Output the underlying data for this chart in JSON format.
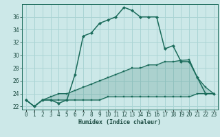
{
  "xlabel": "Humidex (Indice chaleur)",
  "background_color": "#cce8e8",
  "grid_color": "#aad4d4",
  "line_color": "#1a6b5a",
  "x_hours": [
    0,
    1,
    2,
    3,
    4,
    5,
    6,
    7,
    8,
    9,
    10,
    11,
    12,
    13,
    14,
    15,
    16,
    17,
    18,
    19,
    20,
    21,
    22,
    23
  ],
  "humidex_main": [
    23,
    22,
    23,
    23,
    22.5,
    23,
    27,
    33,
    33.5,
    35,
    35.5,
    36,
    37.5,
    37,
    36,
    36,
    36,
    31,
    31.5,
    29,
    29,
    26.5,
    24,
    24
  ],
  "humidex_low": [
    23,
    22,
    23,
    23,
    23,
    23,
    23,
    23,
    23,
    23,
    23.5,
    23.5,
    23.5,
    23.5,
    23.5,
    23.5,
    23.5,
    23.5,
    23.5,
    23.5,
    23.5,
    24,
    24,
    24
  ],
  "humidex_diag": [
    23,
    22,
    23,
    23.5,
    24,
    24,
    24.5,
    25,
    25.5,
    26,
    26.5,
    27,
    27.5,
    28,
    28,
    28.5,
    28.5,
    29,
    29,
    29.2,
    29.3,
    26.5,
    25,
    24
  ],
  "ylim": [
    21.5,
    38
  ],
  "yticks": [
    22,
    24,
    26,
    28,
    30,
    32,
    34,
    36
  ],
  "xlim": [
    -0.5,
    23.5
  ],
  "xlabel_fontsize": 6.0,
  "tick_fontsize": 5.5
}
